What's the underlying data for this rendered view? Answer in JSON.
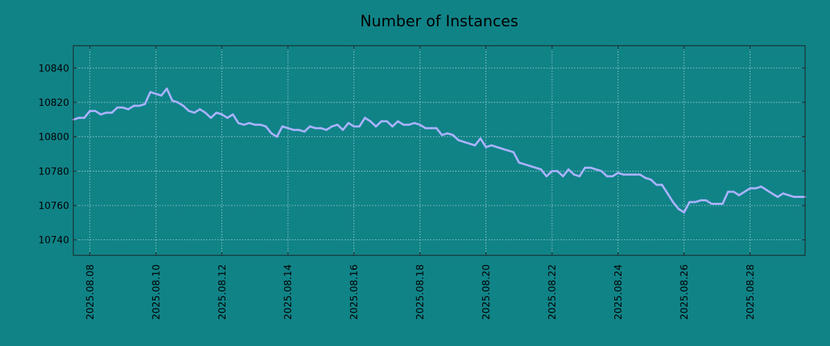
{
  "colors": {
    "background": "#108387",
    "line": "#a9b2ff",
    "axis": "#1a1a1a",
    "grid": "#d6e7e7"
  },
  "chart_data": {
    "type": "line",
    "title": "Number of Instances",
    "xlabel": "",
    "ylabel": "",
    "grid": true,
    "x_tick_labels": [
      "2025.08.08",
      "2025.08.10",
      "2025.08.12",
      "2025.08.14",
      "2025.08.16",
      "2025.08.18",
      "2025.08.20",
      "2025.08.22",
      "2025.08.24",
      "2025.08.26",
      "2025.08.28"
    ],
    "y_ticks": [
      10740,
      10760,
      10780,
      10800,
      10820,
      10840
    ],
    "ylim": [
      10731,
      10853
    ],
    "xlim": [
      "2025-08-07 12:00",
      "2025-08-29 16:00"
    ],
    "series": [
      {
        "x": [
          "2025-08-07 12:00",
          "2025-08-07 16:00",
          "2025-08-07 20:00",
          "2025-08-08 00:00",
          "2025-08-08 04:00",
          "2025-08-08 08:00",
          "2025-08-08 12:00",
          "2025-08-08 16:00",
          "2025-08-08 20:00",
          "2025-08-09 00:00",
          "2025-08-09 04:00",
          "2025-08-09 08:00",
          "2025-08-09 12:00",
          "2025-08-09 16:00",
          "2025-08-09 20:00",
          "2025-08-10 00:00",
          "2025-08-10 04:00",
          "2025-08-10 08:00",
          "2025-08-10 12:00",
          "2025-08-10 16:00",
          "2025-08-10 20:00",
          "2025-08-11 00:00",
          "2025-08-11 04:00",
          "2025-08-11 08:00",
          "2025-08-11 12:00",
          "2025-08-11 16:00",
          "2025-08-11 20:00",
          "2025-08-12 00:00",
          "2025-08-12 04:00",
          "2025-08-12 08:00",
          "2025-08-12 12:00",
          "2025-08-12 16:00",
          "2025-08-12 20:00",
          "2025-08-13 00:00",
          "2025-08-13 04:00",
          "2025-08-13 08:00",
          "2025-08-13 12:00",
          "2025-08-13 16:00",
          "2025-08-13 20:00",
          "2025-08-14 00:00",
          "2025-08-14 04:00",
          "2025-08-14 08:00",
          "2025-08-14 12:00",
          "2025-08-14 16:00",
          "2025-08-14 20:00",
          "2025-08-15 00:00",
          "2025-08-15 04:00",
          "2025-08-15 08:00",
          "2025-08-15 12:00",
          "2025-08-15 16:00",
          "2025-08-15 20:00",
          "2025-08-16 00:00",
          "2025-08-16 04:00",
          "2025-08-16 08:00",
          "2025-08-16 12:00",
          "2025-08-16 16:00",
          "2025-08-16 20:00",
          "2025-08-17 00:00",
          "2025-08-17 04:00",
          "2025-08-17 08:00",
          "2025-08-17 12:00",
          "2025-08-17 16:00",
          "2025-08-17 20:00",
          "2025-08-18 00:00",
          "2025-08-18 04:00",
          "2025-08-18 08:00",
          "2025-08-18 12:00",
          "2025-08-18 16:00",
          "2025-08-18 20:00",
          "2025-08-19 00:00",
          "2025-08-19 04:00",
          "2025-08-19 08:00",
          "2025-08-19 12:00",
          "2025-08-19 16:00",
          "2025-08-19 20:00",
          "2025-08-20 00:00",
          "2025-08-20 04:00",
          "2025-08-20 08:00",
          "2025-08-20 12:00",
          "2025-08-20 16:00",
          "2025-08-20 20:00",
          "2025-08-21 00:00",
          "2025-08-21 04:00",
          "2025-08-21 08:00",
          "2025-08-21 12:00",
          "2025-08-21 16:00",
          "2025-08-21 20:00",
          "2025-08-22 00:00",
          "2025-08-22 04:00",
          "2025-08-22 08:00",
          "2025-08-22 12:00",
          "2025-08-22 16:00",
          "2025-08-22 20:00",
          "2025-08-23 00:00",
          "2025-08-23 04:00",
          "2025-08-23 08:00",
          "2025-08-23 12:00",
          "2025-08-23 16:00",
          "2025-08-23 20:00",
          "2025-08-24 00:00",
          "2025-08-24 04:00",
          "2025-08-24 08:00",
          "2025-08-24 12:00",
          "2025-08-24 16:00",
          "2025-08-24 20:00",
          "2025-08-25 00:00",
          "2025-08-25 04:00",
          "2025-08-25 08:00",
          "2025-08-25 12:00",
          "2025-08-25 16:00",
          "2025-08-25 20:00",
          "2025-08-26 00:00",
          "2025-08-26 04:00",
          "2025-08-26 08:00",
          "2025-08-26 12:00",
          "2025-08-26 16:00",
          "2025-08-26 20:00",
          "2025-08-27 00:00",
          "2025-08-27 04:00",
          "2025-08-27 08:00",
          "2025-08-27 12:00",
          "2025-08-27 16:00",
          "2025-08-27 20:00",
          "2025-08-28 00:00",
          "2025-08-28 04:00",
          "2025-08-28 08:00",
          "2025-08-28 12:00",
          "2025-08-28 16:00",
          "2025-08-28 20:00",
          "2025-08-29 00:00",
          "2025-08-29 04:00",
          "2025-08-29 08:00",
          "2025-08-29 12:00",
          "2025-08-29 16:00"
        ],
        "values": [
          10810,
          10811,
          10811,
          10815,
          10815,
          10813,
          10814,
          10814,
          10817,
          10817,
          10816,
          10818,
          10818,
          10819,
          10826,
          10825,
          10824,
          10828,
          10821,
          10820,
          10818,
          10815,
          10814,
          10816,
          10814,
          10811,
          10814,
          10813,
          10811,
          10813,
          10808,
          10807,
          10808,
          10807,
          10807,
          10806,
          10802,
          10800,
          10806,
          10805,
          10804,
          10804,
          10803,
          10806,
          10805,
          10805,
          10804,
          10806,
          10807,
          10804,
          10808,
          10806,
          10806,
          10811,
          10809,
          10806,
          10809,
          10809,
          10806,
          10809,
          10807,
          10807,
          10808,
          10807,
          10805,
          10805,
          10805,
          10801,
          10802,
          10801,
          10798,
          10797,
          10796,
          10795,
          10799,
          10794,
          10795,
          10794,
          10793,
          10792,
          10791,
          10785,
          10784,
          10783,
          10782,
          10781,
          10777,
          10780,
          10780,
          10777,
          10781,
          10778,
          10777,
          10782,
          10782,
          10781,
          10780,
          10777,
          10777,
          10779,
          10778,
          10778,
          10778,
          10778,
          10776,
          10775,
          10772,
          10772,
          10767,
          10762,
          10758,
          10756,
          10762,
          10762,
          10763,
          10763,
          10761,
          10761,
          10761,
          10768,
          10768,
          10766,
          10768,
          10770,
          10770,
          10771,
          10769,
          10767,
          10765,
          10767,
          10766,
          10765,
          10765,
          10765
        ]
      }
    ]
  }
}
